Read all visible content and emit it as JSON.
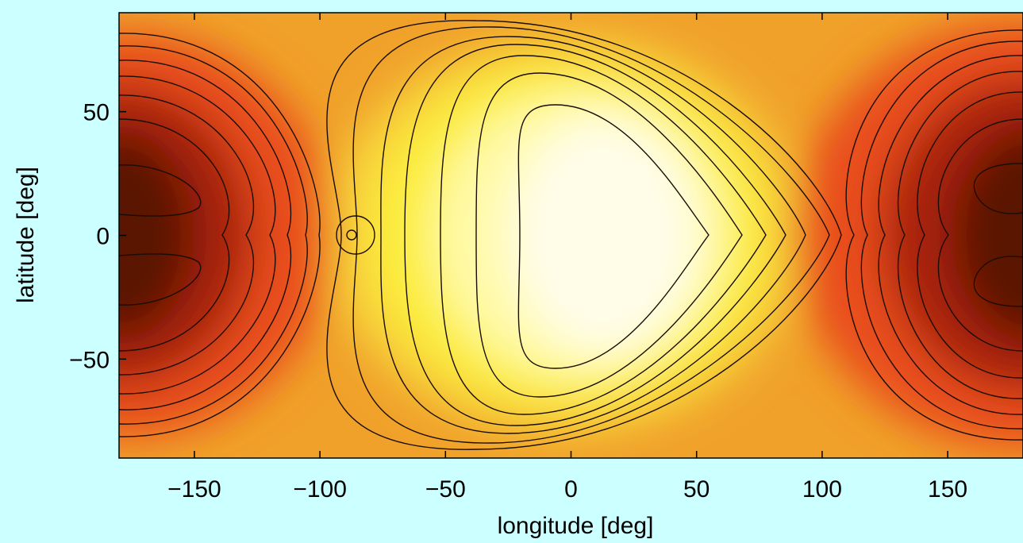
{
  "chart_data": {
    "type": "heatmap",
    "title": "",
    "xlabel": "longitude [deg]",
    "ylabel": "latitude [deg]",
    "xlim": [
      -180,
      180
    ],
    "ylim": [
      -90,
      90
    ],
    "x_ticks": [
      -150,
      -100,
      -50,
      0,
      50,
      100,
      150
    ],
    "x_tick_labels": [
      "−150",
      "−100",
      "−50",
      "0",
      "50",
      "100",
      "150"
    ],
    "y_ticks": [
      50,
      0,
      -50
    ],
    "y_tick_labels": [
      "50",
      "0",
      "−50"
    ],
    "colormap": "hot",
    "contour_lines": "black",
    "colorbar": false,
    "grid": false,
    "features": {
      "maximum_region_center": [
        10,
        0
      ],
      "minima_centers": [
        [
          -175,
          18
        ],
        [
          -175,
          -18
        ],
        [
          178,
          18
        ],
        [
          178,
          -18
        ]
      ],
      "small_closed_contour_center": [
        -87,
        0
      ]
    }
  },
  "colors": {
    "background": "#ccffff",
    "darkest": "#3d0c02",
    "mid": "#e94e1b",
    "orange": "#f0a12a",
    "brightest": "#fffde8"
  }
}
